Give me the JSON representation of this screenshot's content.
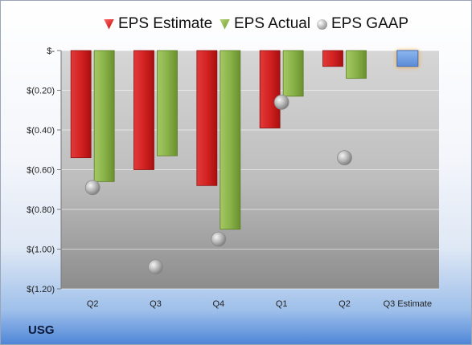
{
  "company": "USG",
  "colors": {
    "estimate": "#cc1f1f",
    "actual": "#8ab34a",
    "gaap": "#b0b0b0",
    "future_estimate": "#6a9be0",
    "future_glow": "#f6b04c"
  },
  "chart_data": {
    "type": "bar",
    "categories": [
      "Q2",
      "Q3",
      "Q4",
      "Q1",
      "Q2",
      "Q3 Estimate"
    ],
    "series": [
      {
        "name": "EPS Estimate",
        "values": [
          -0.54,
          -0.6,
          -0.68,
          -0.39,
          -0.08,
          -0.08
        ]
      },
      {
        "name": "EPS Actual",
        "values": [
          -0.66,
          -0.53,
          -0.9,
          -0.23,
          -0.14,
          null
        ]
      },
      {
        "name": "EPS GAAP",
        "values": [
          -0.69,
          -1.09,
          -0.95,
          -0.26,
          -0.54,
          null
        ]
      }
    ],
    "ylim": [
      -1.2,
      0
    ],
    "yticks": [
      0,
      -0.2,
      -0.4,
      -0.6,
      -0.8,
      -1.0,
      -1.2
    ],
    "ytick_labels": [
      "$-",
      "$(0.20)",
      "$(0.40)",
      "$(0.60)",
      "$(0.80)",
      "$(1.00)",
      "$(1.20)"
    ],
    "legend_position": "top",
    "grid": true
  }
}
